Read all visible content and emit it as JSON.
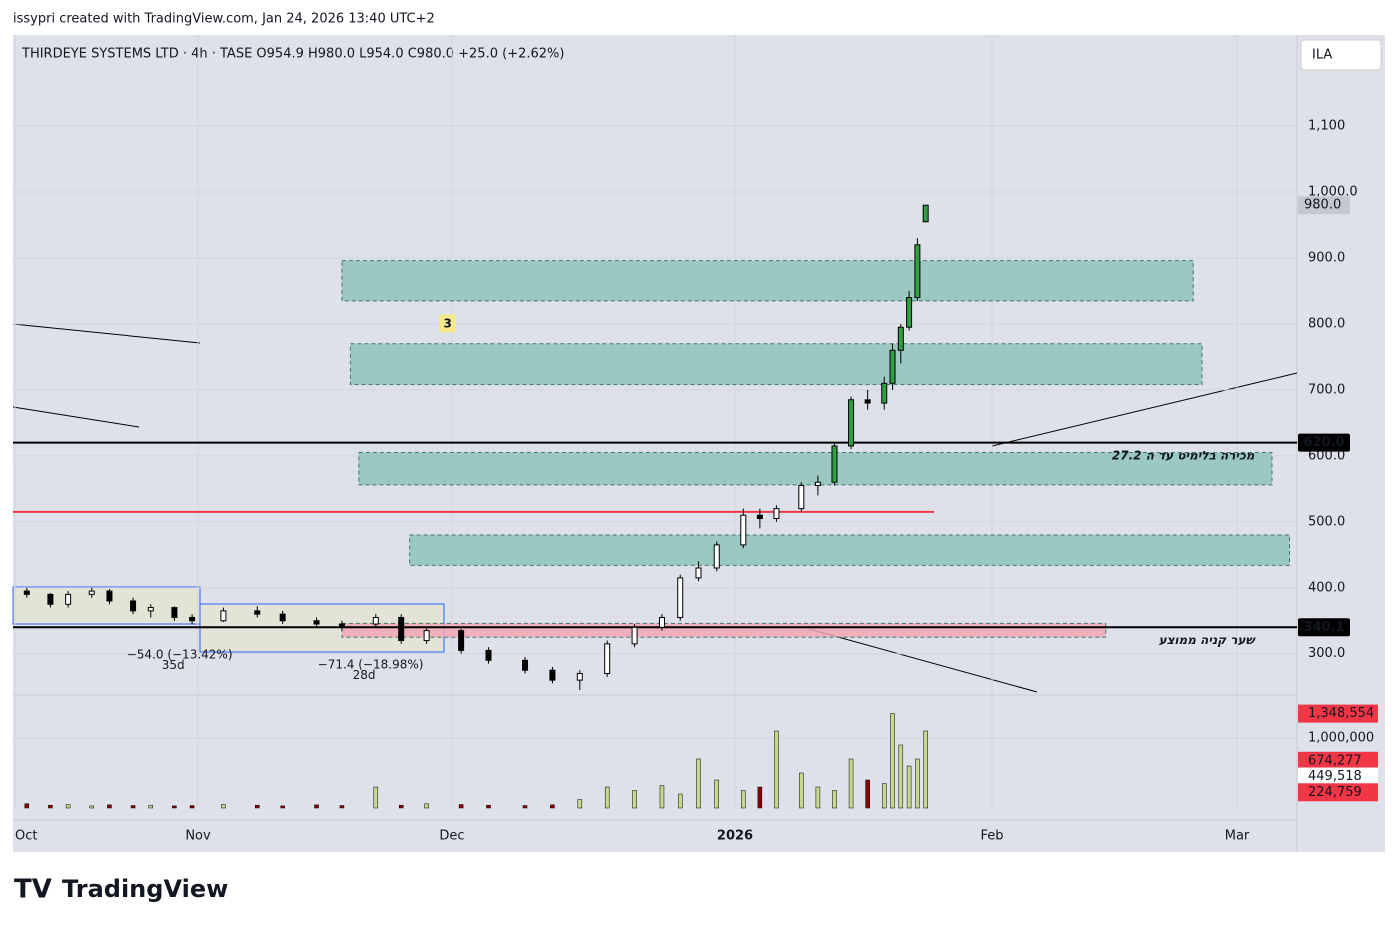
{
  "header": {
    "credit": "issypri created with TradingView.com, Jan 24, 2026 13:40 UTC+2",
    "currency": "ILA",
    "brand": "TradingView"
  },
  "chart_data": {
    "type": "candlestick",
    "title": "THIRDEYE SYSTEMS LTD · 4h · TASE  O954.9  H980.0  L954.0  C980.0  +25.0 (+2.62%)",
    "x": [
      2,
      6,
      9,
      13,
      16,
      20,
      23,
      27,
      30,
      34,
      38,
      41,
      45,
      48,
      52,
      55,
      58,
      62,
      65,
      69,
      72,
      75,
      78,
      81,
      84,
      86,
      88,
      90,
      93,
      95,
      97,
      100,
      102,
      104,
      106,
      108,
      110,
      111,
      112,
      113,
      114,
      115
    ],
    "open": [
      395,
      390,
      375,
      390,
      395,
      380,
      365,
      370,
      355,
      350,
      365,
      360,
      350,
      345,
      345,
      355,
      320,
      335,
      305,
      290,
      275,
      260,
      270,
      315,
      340,
      355,
      415,
      430,
      465,
      510,
      505,
      520,
      555,
      560,
      615,
      685,
      680,
      710,
      760,
      795,
      840,
      954.9
    ],
    "high": [
      400,
      392,
      395,
      400,
      398,
      385,
      375,
      372,
      360,
      370,
      372,
      365,
      355,
      350,
      360,
      360,
      340,
      338,
      310,
      295,
      280,
      275,
      320,
      345,
      360,
      420,
      440,
      470,
      520,
      520,
      525,
      560,
      570,
      620,
      690,
      700,
      720,
      770,
      800,
      850,
      930,
      980
    ],
    "low": [
      385,
      370,
      370,
      385,
      375,
      360,
      355,
      350,
      345,
      348,
      355,
      345,
      340,
      335,
      340,
      315,
      315,
      300,
      285,
      270,
      255,
      245,
      265,
      310,
      335,
      350,
      410,
      425,
      460,
      490,
      500,
      515,
      540,
      555,
      610,
      670,
      670,
      700,
      740,
      790,
      835,
      954
    ],
    "close": [
      390,
      375,
      390,
      395,
      380,
      365,
      370,
      355,
      350,
      365,
      360,
      350,
      345,
      340,
      355,
      320,
      335,
      305,
      290,
      275,
      260,
      270,
      315,
      340,
      355,
      415,
      430,
      465,
      510,
      505,
      520,
      555,
      560,
      615,
      685,
      680,
      710,
      760,
      795,
      840,
      920,
      980
    ],
    "volume": [
      60000,
      40000,
      50000,
      30000,
      45000,
      35000,
      40000,
      30000,
      35000,
      50000,
      40000,
      30000,
      45000,
      35000,
      300000,
      40000,
      60000,
      50000,
      40000,
      35000,
      45000,
      120000,
      300000,
      250000,
      320000,
      200000,
      700000,
      400000,
      250000,
      300000,
      1100000,
      500000,
      300000,
      250000,
      700000,
      400000,
      350000,
      1348554,
      900000,
      600000,
      700000,
      1100000
    ],
    "ylim": [
      242,
      1238
    ],
    "yticks": [
      {
        "value": 300,
        "label": "300.0"
      },
      {
        "value": 400,
        "label": "400.0"
      },
      {
        "value": 500,
        "label": "500.0"
      },
      {
        "value": 600,
        "label": "600.0"
      },
      {
        "value": 700,
        "label": "700.0"
      },
      {
        "value": 800,
        "label": "800.0"
      },
      {
        "value": 900,
        "label": "900.0"
      },
      {
        "value": 1000,
        "label": "1,000.0"
      },
      {
        "value": 1100,
        "label": "1,100"
      }
    ],
    "xticks": [
      {
        "value": 0,
        "label": "Oct"
      },
      {
        "value": 31,
        "label": "Nov"
      },
      {
        "value": 61,
        "label": "Dec"
      },
      {
        "value": 92,
        "label": "2026"
      },
      {
        "value": 123,
        "label": "Feb"
      },
      {
        "value": 151,
        "label": "Mar"
      }
    ],
    "y2lim": [
      0,
      1500000
    ],
    "y2ticks": [
      {
        "value": 1000000,
        "label": "1,000,000"
      }
    ],
    "volume_labels": [
      {
        "value": 1348554,
        "label": "1,348,554",
        "color": "#f23645"
      },
      {
        "value": 674277,
        "label": "674,277",
        "color": "#f23645"
      },
      {
        "value": 449518,
        "label": "449,518",
        "color": "#ffffff"
      },
      {
        "value": 224759,
        "label": "224,759",
        "color": "#f23645"
      }
    ],
    "last_price": {
      "value": 980,
      "label": "980.0"
    },
    "levels": [
      {
        "value": 620,
        "label": "620.0",
        "color": "#000000"
      },
      {
        "value": 340.1,
        "label": "340.1",
        "color": "#000000"
      },
      {
        "value": 515,
        "color": "#f23645"
      }
    ],
    "zones": [
      {
        "y1": 835,
        "y2": 896,
        "x1": 48,
        "x2": 146,
        "color": "#8fc3b8"
      },
      {
        "y1": 708,
        "y2": 770,
        "x1": 49,
        "x2": 147,
        "color": "#8fc3b8"
      },
      {
        "y1": 556,
        "y2": 605,
        "x1": 50,
        "x2": 155,
        "color": "#8fc3b8"
      },
      {
        "y1": 434,
        "y2": 480,
        "x1": 56,
        "x2": 157,
        "color": "#8fc3b8"
      },
      {
        "y1": 325,
        "y2": 346,
        "x1": 48,
        "x2": 136,
        "color": "#f2a7b4"
      }
    ],
    "annotations": [
      {
        "text": "3",
        "x": 60,
        "y": 800
      },
      {
        "text": "מכירה בלימיט עד ה 27.2",
        "x": 153,
        "y": 600
      },
      {
        "text": "שער קניה ממוצע",
        "x": 153,
        "y": 320
      },
      {
        "text": "−54.0 (−13.42%)",
        "x": 13,
        "y": 298
      },
      {
        "text": "35d",
        "x": 13,
        "y": 282
      },
      {
        "text": "−71.4 (−18.98%)",
        "x": 41,
        "y": 283
      },
      {
        "text": "28d",
        "x": 41,
        "y": 267
      }
    ]
  }
}
